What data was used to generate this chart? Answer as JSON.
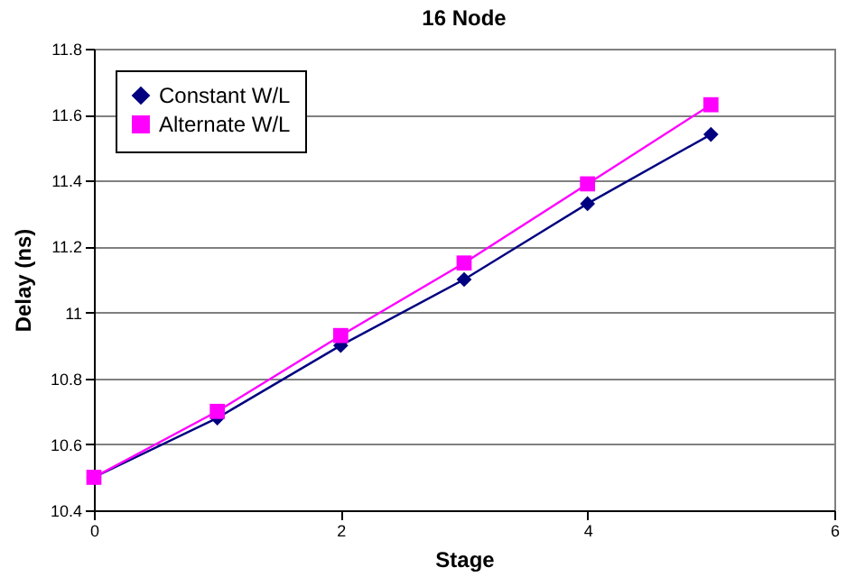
{
  "chart_data": {
    "type": "line",
    "title": "16 Node",
    "xlabel": "Stage",
    "ylabel": "Delay (ns)",
    "x": [
      0,
      1,
      2,
      3,
      4,
      5
    ],
    "series": [
      {
        "name": "Constant W/L",
        "color": "#000080",
        "marker": "diamond",
        "values": [
          10.5,
          10.68,
          10.9,
          11.1,
          11.33,
          11.54
        ]
      },
      {
        "name": "Alternate W/L",
        "color": "#ff00ff",
        "marker": "square",
        "values": [
          10.5,
          10.7,
          10.93,
          11.15,
          11.39,
          11.63
        ]
      }
    ],
    "xlim": [
      0,
      6
    ],
    "xticks": [
      0,
      2,
      4,
      6
    ],
    "ylim": [
      10.4,
      11.8
    ],
    "yticks": [
      10.4,
      10.6,
      10.8,
      11,
      11.2,
      11.4,
      11.6,
      11.8
    ],
    "grid": "y",
    "legend": "top left"
  }
}
